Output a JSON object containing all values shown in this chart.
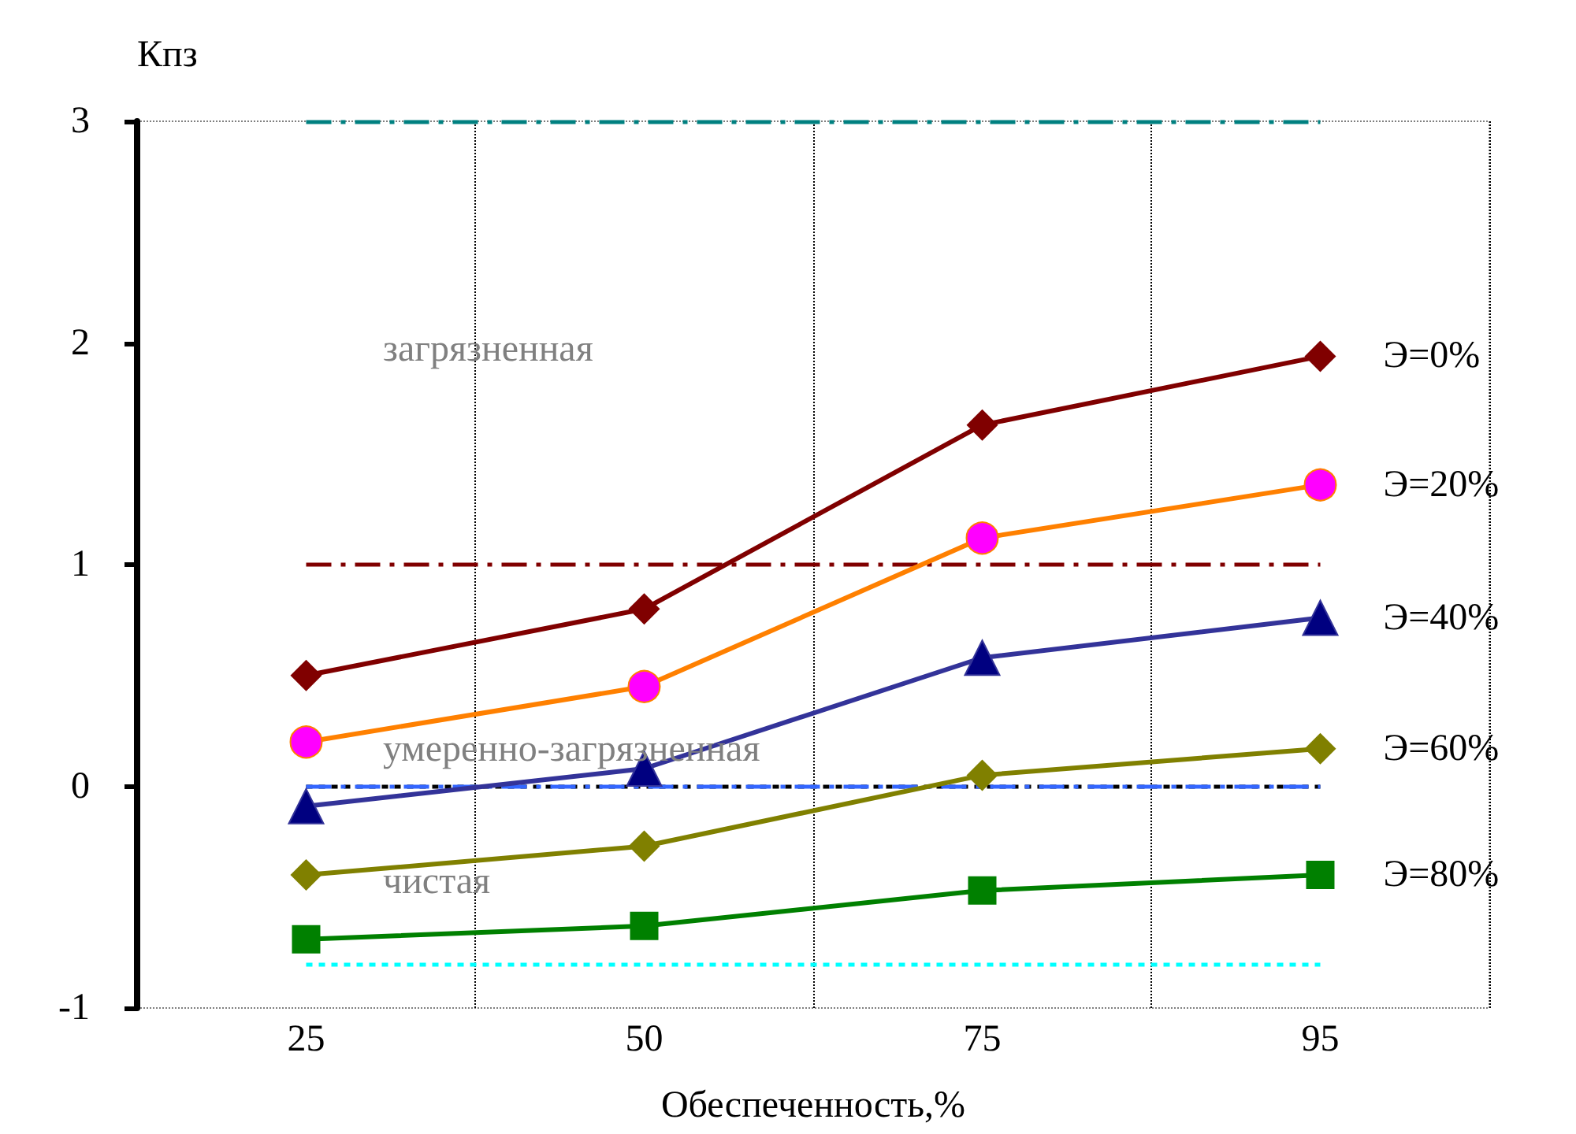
{
  "chart_data": {
    "type": "line",
    "xlabel": "Обеспеченность,%",
    "ylabel": "Кпз",
    "categories": [
      "25",
      "50",
      "75",
      "95"
    ],
    "ylim": [
      -1,
      3
    ],
    "yticks": [
      -1,
      0,
      1,
      2,
      3
    ],
    "grid": "x",
    "legend": false,
    "line_style": "solid",
    "series": [
      {
        "name": "Э=0%",
        "color": "#800000",
        "marker": "diamond",
        "values": [
          0.5,
          0.8,
          1.63,
          1.94
        ]
      },
      {
        "name": "Э=20%",
        "color": "#ff8000",
        "colors": [
          "#ff00ff",
          "#ff00ff",
          "#ff00ff",
          "#ff00ff"
        ],
        "marker": "circle",
        "values": [
          0.2,
          0.45,
          1.12,
          1.36
        ]
      },
      {
        "name": "Э=40%",
        "color": "#333399",
        "colors": [
          "#000080",
          "#000080",
          "#000080",
          "#000080"
        ],
        "marker": "triangle",
        "values": [
          -0.09,
          0.08,
          0.58,
          0.76
        ]
      },
      {
        "name": "Э=60%",
        "color": "#808000",
        "marker": "diamond",
        "values": [
          -0.4,
          -0.27,
          0.05,
          0.17
        ]
      },
      {
        "name": "Э=80%",
        "color": "#008000",
        "marker": "square",
        "values": [
          -0.69,
          -0.63,
          -0.47,
          -0.4
        ]
      }
    ],
    "ref_lines": [
      {
        "axis": "y",
        "value": 3,
        "color": "#008080",
        "line_style": "dashed"
      },
      {
        "axis": "y",
        "value": 1,
        "color": "#800000",
        "line_style": "dashed"
      },
      {
        "axis": "y",
        "value": 0,
        "color": "#000000",
        "line_style": "dotted"
      },
      {
        "axis": "y",
        "value": 0,
        "color": "#3366ff",
        "line_style": "dashed"
      },
      {
        "axis": "y",
        "value": -0.8,
        "color": "#00ffff",
        "line_style": "dotted"
      }
    ],
    "annotations": [
      "загрязненная",
      "умеренно-загрязненная",
      "чистая"
    ]
  }
}
